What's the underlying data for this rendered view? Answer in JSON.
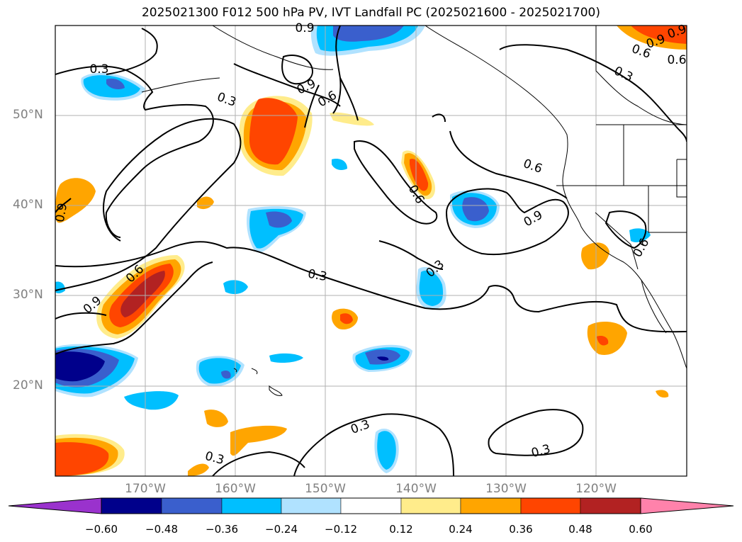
{
  "title": "2025021300 F012 500 hPa PV, IVT Landfall PC (2025021600 - 2025021700)",
  "map": {
    "lat_labels": [
      "50°N",
      "40°N",
      "30°N",
      "20°N"
    ],
    "lon_labels": [
      "170°W",
      "160°W",
      "150°W",
      "140°W",
      "130°W",
      "120°W"
    ],
    "contour_labels": [
      "0.3",
      "0.3",
      "0.3",
      "0.3",
      "0.3",
      "0.3",
      "0.3",
      "0.6",
      "0.6",
      "0.6",
      "0.6",
      "0.6",
      "0.9",
      "0.9",
      "0.9",
      "0.9",
      "0.9",
      "0.9",
      "0.6",
      "0.3",
      "0.9",
      "0.6"
    ]
  },
  "colorbar": {
    "ticks": [
      "−0.60",
      "−0.48",
      "−0.36",
      "−0.24",
      "−0.12",
      "0.12",
      "0.24",
      "0.36",
      "0.48",
      "0.60"
    ],
    "colors": [
      "#9a32cd",
      "#00008b",
      "#3a5fcd",
      "#00bfff",
      "#b0e2ff",
      "#ffffff",
      "#ffec8b",
      "#ffa500",
      "#ff4500",
      "#b22222",
      "#ff82ab"
    ]
  }
}
